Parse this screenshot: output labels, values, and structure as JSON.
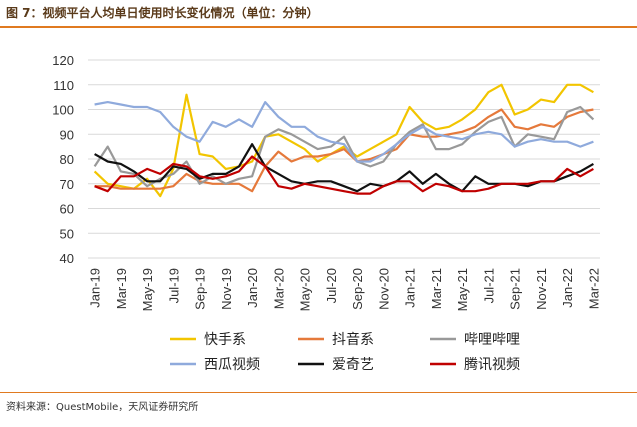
{
  "header": {
    "title": "图 7：视频平台人均单日使用时长变化情况（单位：分钟）"
  },
  "footer": {
    "source": "资料来源：QuestMobile，天风证券研究所"
  },
  "colors": {
    "accent": "#e07a20",
    "grid": "#d9d9d9"
  },
  "chart_data": {
    "type": "line",
    "title": "视频平台人均单日使用时长变化情况（单位：分钟）",
    "ylabel": "分钟",
    "ylim": [
      40,
      120
    ],
    "yticks": [
      40,
      50,
      60,
      70,
      80,
      90,
      100,
      110,
      120
    ],
    "grid": true,
    "legend_position": "bottom",
    "categories": [
      "Jan-19",
      "Feb-19",
      "Mar-19",
      "Apr-19",
      "May-19",
      "Jun-19",
      "Jul-19",
      "Aug-19",
      "Sep-19",
      "Oct-19",
      "Nov-19",
      "Dec-19",
      "Jan-20",
      "Feb-20",
      "Mar-20",
      "Apr-20",
      "May-20",
      "Jun-20",
      "Jul-20",
      "Aug-20",
      "Sep-20",
      "Oct-20",
      "Nov-20",
      "Dec-20",
      "Jan-21",
      "Feb-21",
      "Mar-21",
      "Apr-21",
      "May-21",
      "Jun-21",
      "Jul-21",
      "Aug-21",
      "Sep-21",
      "Oct-21",
      "Nov-21",
      "Dec-21",
      "Jan-22",
      "Feb-22",
      "Mar-22"
    ],
    "tick_labels": [
      "Jan-19",
      "Mar-19",
      "May-19",
      "Jul-19",
      "Sep-19",
      "Nov-19",
      "Jan-20",
      "Mar-20",
      "May-20",
      "Jul-20",
      "Sep-20",
      "Nov-20",
      "Jan-21",
      "Mar-21",
      "May-21",
      "Jul-21",
      "Sep-21",
      "Nov-21",
      "Jan-22",
      "Mar-22"
    ],
    "series": [
      {
        "name": "快手系",
        "color": "#f2c500",
        "values": [
          75,
          70,
          69,
          68,
          72,
          65,
          76,
          106,
          82,
          81,
          76,
          77,
          79,
          89,
          90,
          87,
          84,
          79,
          82,
          85,
          81,
          84,
          87,
          90,
          101,
          95,
          92,
          93,
          96,
          100,
          107,
          110,
          98,
          100,
          104,
          103,
          110,
          110,
          107
        ]
      },
      {
        "name": "抖音系",
        "color": "#e5793b",
        "values": [
          69,
          69,
          68,
          68,
          68,
          68,
          69,
          74,
          71,
          70,
          70,
          70,
          67,
          77,
          83,
          79,
          81,
          81,
          82,
          84,
          79,
          80,
          82,
          84,
          90,
          89,
          89,
          90,
          91,
          93,
          97,
          100,
          93,
          92,
          94,
          93,
          97,
          99,
          100
        ]
      },
      {
        "name": "哔哩哔哩",
        "color": "#999999",
        "values": [
          77,
          85,
          75,
          74,
          69,
          72,
          74,
          79,
          70,
          73,
          70,
          72,
          73,
          89,
          92,
          90,
          87,
          84,
          85,
          89,
          79,
          77,
          79,
          86,
          91,
          94,
          84,
          84,
          86,
          91,
          95,
          97,
          85,
          90,
          89,
          88,
          99,
          101,
          96
        ]
      },
      {
        "name": "西瓜视频",
        "color": "#8faadc",
        "values": [
          102,
          103,
          102,
          101,
          101,
          99,
          93,
          89,
          87,
          95,
          93,
          96,
          93,
          103,
          97,
          93,
          93,
          89,
          87,
          86,
          79,
          79,
          82,
          86,
          90,
          93,
          90,
          89,
          88,
          90,
          91,
          90,
          85,
          87,
          88,
          87,
          87,
          85,
          87
        ]
      },
      {
        "name": "爱奇艺",
        "color": "#111111",
        "values": [
          82,
          79,
          78,
          75,
          71,
          71,
          77,
          76,
          72,
          74,
          74,
          77,
          86,
          77,
          74,
          71,
          70,
          71,
          71,
          69,
          67,
          70,
          69,
          71,
          75,
          70,
          74,
          70,
          67,
          73,
          70,
          70,
          70,
          69,
          71,
          71,
          73,
          75,
          78
        ]
      },
      {
        "name": "腾讯视频",
        "color": "#c00000",
        "values": [
          69,
          67,
          73,
          73,
          76,
          74,
          78,
          77,
          73,
          72,
          73,
          75,
          81,
          77,
          69,
          68,
          70,
          69,
          68,
          67,
          66,
          66,
          69,
          71,
          71,
          67,
          70,
          69,
          67,
          67,
          68,
          70,
          70,
          70,
          71,
          71,
          76,
          73,
          76
        ]
      }
    ]
  }
}
